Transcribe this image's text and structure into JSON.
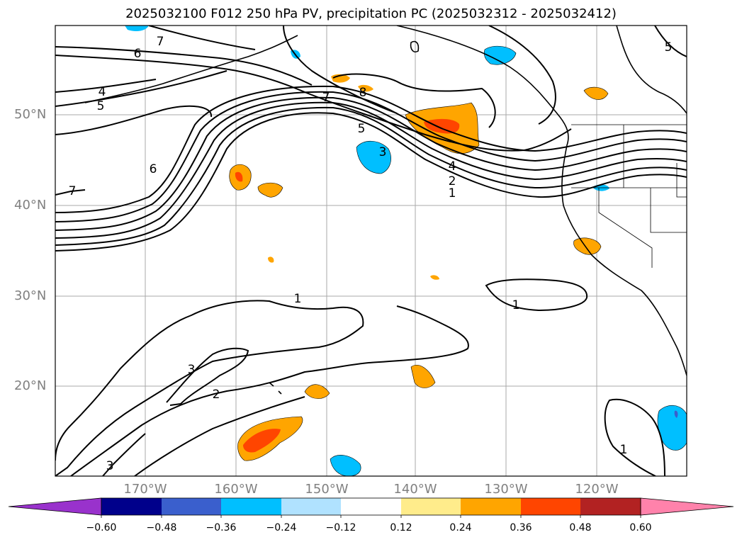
{
  "title": "2025032100 F012 250 hPa PV, precipitation PC (2025032312 - 2025032412)",
  "map": {
    "lat_labels": [
      "50°N",
      "40°N",
      "30°N",
      "20°N"
    ],
    "lon_labels": [
      "170°W",
      "160°W",
      "150°W",
      "140°W",
      "130°W",
      "120°W"
    ],
    "contour_labels": [
      "7",
      "6",
      "4",
      "5",
      "7",
      "8",
      "5",
      "3",
      "4",
      "2",
      "1",
      "6",
      "7",
      "1",
      "1",
      "3",
      "2",
      "3",
      "1",
      "5"
    ]
  },
  "colorbar": {
    "ticks": [
      "−0.60",
      "−0.48",
      "−0.36",
      "−0.24",
      "−0.12",
      "0.12",
      "0.24",
      "0.36",
      "0.48",
      "0.60"
    ],
    "colors": [
      "#9932cc",
      "#00008b",
      "#3a5fcd",
      "#00bfff",
      "#b0e2ff",
      "#ffffff",
      "#ffec8b",
      "#ffa500",
      "#ff4500",
      "#b22222",
      "#ff82ab"
    ]
  }
}
